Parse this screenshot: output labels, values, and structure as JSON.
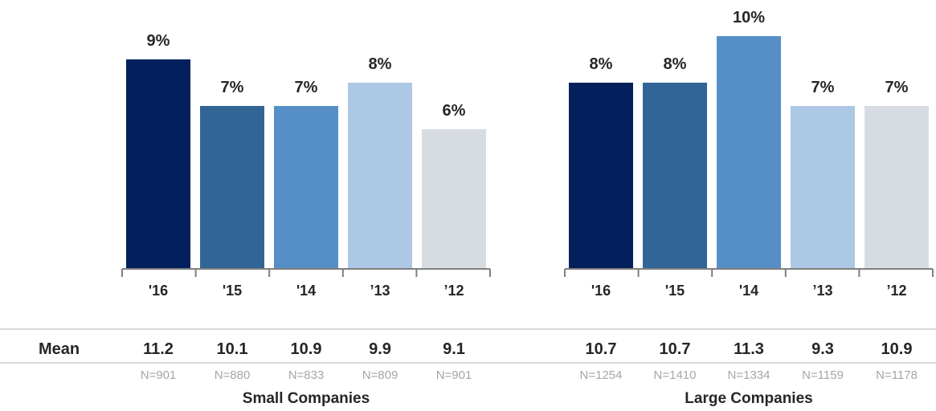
{
  "mean_label": "Mean",
  "colors": [
    "#03205c",
    "#316596",
    "#568fc8",
    "#adc8e4",
    "#d7dce3"
  ],
  "chart_data": {
    "type": "bar",
    "ylim": [
      0,
      11
    ],
    "value_format": "percent",
    "groups": [
      {
        "name": "Small Companies",
        "categories": [
          "'16",
          "'15",
          "'14",
          "’13",
          "’12"
        ],
        "values": [
          9,
          7,
          7,
          8,
          6
        ],
        "labels": [
          "9%",
          "7%",
          "7%",
          "8%",
          "6%"
        ],
        "means": [
          "11.2",
          "10.1",
          "10.9",
          "9.9",
          "9.1"
        ],
        "n": [
          "N=901",
          "N=880",
          "N=833",
          "N=809",
          "N=901"
        ]
      },
      {
        "name": "Large Companies",
        "categories": [
          "'16",
          "'15",
          "'14",
          "’13",
          "’12"
        ],
        "values": [
          8,
          8,
          10,
          7,
          7
        ],
        "labels": [
          "8%",
          "8%",
          "10%",
          "7%",
          "7%"
        ],
        "means": [
          "10.7",
          "10.7",
          "11.3",
          "9.3",
          "10.9"
        ],
        "n": [
          "N=1254",
          "N=1410",
          "N=1334",
          "N=1159",
          "N=1178"
        ]
      }
    ]
  }
}
